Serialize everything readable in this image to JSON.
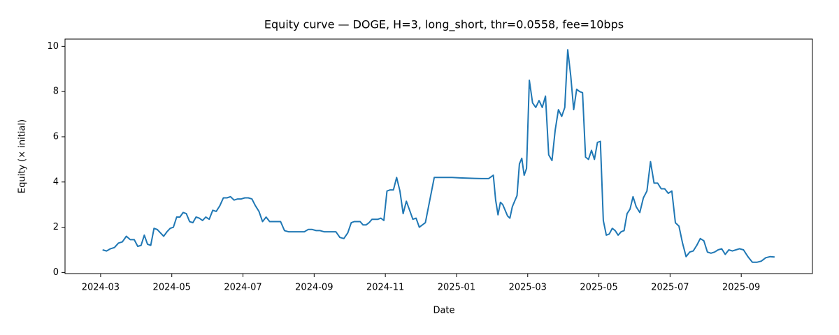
{
  "chart_data": {
    "type": "line",
    "title": "Equity curve — DOGE, H=3, long_short, thr=0.0558, fee=10bps",
    "x_label": "Date",
    "y_label": "Equity (× initial)",
    "x": [
      "2024-03",
      "2024-03",
      "2024-03",
      "2024-03",
      "2024-03",
      "2024-03",
      "2024-03",
      "2024-03",
      "2024-03",
      "2024-04",
      "2024-04",
      "2024-04",
      "2024-04",
      "2024-04",
      "2024-04",
      "2024-04",
      "2024-04",
      "2024-04",
      "2024-04",
      "2024-04",
      "2024-05",
      "2024-05",
      "2024-05",
      "2024-05",
      "2024-05",
      "2024-05",
      "2024-05",
      "2024-05",
      "2024-05",
      "2024-05",
      "2024-05",
      "2024-06",
      "2024-06",
      "2024-06",
      "2024-06",
      "2024-06",
      "2024-06",
      "2024-06",
      "2024-06",
      "2024-06",
      "2024-06",
      "2024-07",
      "2024-07",
      "2024-07",
      "2024-07",
      "2024-07",
      "2024-07",
      "2024-07",
      "2024-07",
      "2024-07",
      "2024-07",
      "2024-08",
      "2024-08",
      "2024-08",
      "2024-08",
      "2024-08",
      "2024-08",
      "2024-08",
      "2024-08",
      "2024-08",
      "2024-09",
      "2024-09",
      "2024-09",
      "2024-09",
      "2024-09",
      "2024-09",
      "2024-09",
      "2024-09",
      "2024-09",
      "2024-10",
      "2024-10",
      "2024-10",
      "2024-10",
      "2024-10",
      "2024-10",
      "2024-10",
      "2024-10",
      "2024-10",
      "2024-10",
      "2024-10",
      "2024-10",
      "2024-11",
      "2024-11",
      "2024-11",
      "2024-11",
      "2024-11",
      "2024-11",
      "2024-11",
      "2024-11",
      "2024-11",
      "2024-11",
      "2024-11",
      "2024-12",
      "2024-12",
      "2024-12",
      "2024-12",
      "2025-01",
      "2025-01",
      "2025-01",
      "2025-01",
      "2025-01",
      "2025-02",
      "2025-02",
      "2025-02",
      "2025-02",
      "2025-02",
      "2025-02",
      "2025-02",
      "2025-02",
      "2025-02",
      "2025-02",
      "2025-02",
      "2025-02",
      "2025-02",
      "2025-02",
      "2025-02",
      "2025-03",
      "2025-03",
      "2025-03",
      "2025-03",
      "2025-03",
      "2025-03",
      "2025-03",
      "2025-03",
      "2025-03",
      "2025-03",
      "2025-03",
      "2025-04",
      "2025-04",
      "2025-04",
      "2025-04",
      "2025-04",
      "2025-04",
      "2025-04",
      "2025-04",
      "2025-04",
      "2025-04",
      "2025-04",
      "2025-04",
      "2025-05",
      "2025-05",
      "2025-05",
      "2025-05",
      "2025-05",
      "2025-05",
      "2025-05",
      "2025-05",
      "2025-05",
      "2025-05",
      "2025-05",
      "2025-05",
      "2025-06",
      "2025-06",
      "2025-06",
      "2025-06",
      "2025-06",
      "2025-06",
      "2025-06",
      "2025-06",
      "2025-06",
      "2025-06",
      "2025-07",
      "2025-07",
      "2025-07",
      "2025-07",
      "2025-07",
      "2025-07",
      "2025-07",
      "2025-07",
      "2025-07",
      "2025-07",
      "2025-08",
      "2025-08",
      "2025-08",
      "2025-08",
      "2025-08",
      "2025-08",
      "2025-08",
      "2025-08",
      "2025-08",
      "2025-08",
      "2025-09",
      "2025-09",
      "2025-09",
      "2025-09",
      "2025-09",
      "2025-09",
      "2025-09",
      "2025-09"
    ],
    "series": [
      {
        "name": "Equity",
        "color": "#1f77b4",
        "values": [
          1.0,
          0.95,
          1.05,
          1.1,
          1.3,
          1.35,
          1.6,
          1.45,
          1.45,
          1.15,
          1.2,
          1.65,
          1.25,
          1.2,
          1.95,
          1.9,
          1.75,
          1.6,
          1.8,
          1.95,
          2.0,
          2.45,
          2.45,
          2.65,
          2.6,
          2.25,
          2.2,
          2.45,
          2.4,
          2.3,
          2.45,
          2.35,
          2.75,
          2.7,
          2.95,
          3.3,
          3.3,
          3.35,
          3.2,
          3.25,
          3.25,
          3.3,
          3.3,
          3.25,
          2.95,
          2.7,
          2.25,
          2.45,
          2.25,
          2.25,
          2.25,
          2.25,
          1.85,
          1.8,
          1.8,
          1.8,
          1.8,
          1.8,
          1.9,
          1.9,
          1.85,
          1.85,
          1.8,
          1.8,
          1.8,
          1.8,
          1.55,
          1.5,
          1.75,
          2.2,
          2.25,
          2.25,
          2.25,
          2.1,
          2.1,
          2.2,
          2.35,
          2.35,
          2.35,
          2.4,
          2.3,
          3.6,
          3.65,
          3.65,
          4.2,
          3.6,
          2.6,
          3.15,
          2.75,
          2.35,
          2.4,
          2.0,
          2.2,
          4.2,
          4.2,
          4.2,
          4.18,
          4.17,
          4.16,
          4.15,
          4.15,
          4.3,
          3.2,
          2.55,
          3.1,
          3.0,
          2.75,
          2.5,
          2.4,
          2.9,
          3.15,
          3.4,
          4.8,
          5.05,
          4.3,
          4.6,
          8.5,
          7.5,
          7.3,
          7.6,
          7.3,
          7.8,
          5.2,
          4.95,
          6.3,
          7.2,
          6.9,
          7.3,
          9.85,
          8.7,
          7.2,
          8.1,
          8.0,
          7.95,
          5.1,
          5.0,
          5.4,
          5.0,
          5.75,
          5.8,
          2.3,
          1.65,
          1.7,
          1.95,
          1.85,
          1.65,
          1.8,
          1.85,
          2.6,
          2.8,
          3.35,
          2.9,
          2.65,
          3.3,
          3.6,
          4.9,
          3.95,
          3.95,
          3.7,
          3.7,
          3.5,
          3.6,
          2.2,
          2.05,
          1.3,
          0.7,
          0.9,
          0.95,
          1.2,
          1.5,
          1.4,
          0.9,
          0.85,
          0.9,
          1.0,
          1.05,
          0.8,
          1.0,
          0.95,
          1.0,
          1.05,
          1.0,
          0.7,
          0.45,
          0.45,
          0.5,
          0.65,
          0.7,
          0.68
        ]
      }
    ],
    "xlim": [
      "2024-02",
      "2025-10"
    ],
    "xticks": [
      "2024-03",
      "2024-05",
      "2024-07",
      "2024-09",
      "2024-11",
      "2025-01",
      "2025-03",
      "2025-05",
      "2025-07",
      "2025-09"
    ],
    "ylim": [
      -0.05,
      10.32
    ],
    "yticks": [
      0,
      2,
      4,
      6,
      8,
      10
    ],
    "grid": false
  }
}
